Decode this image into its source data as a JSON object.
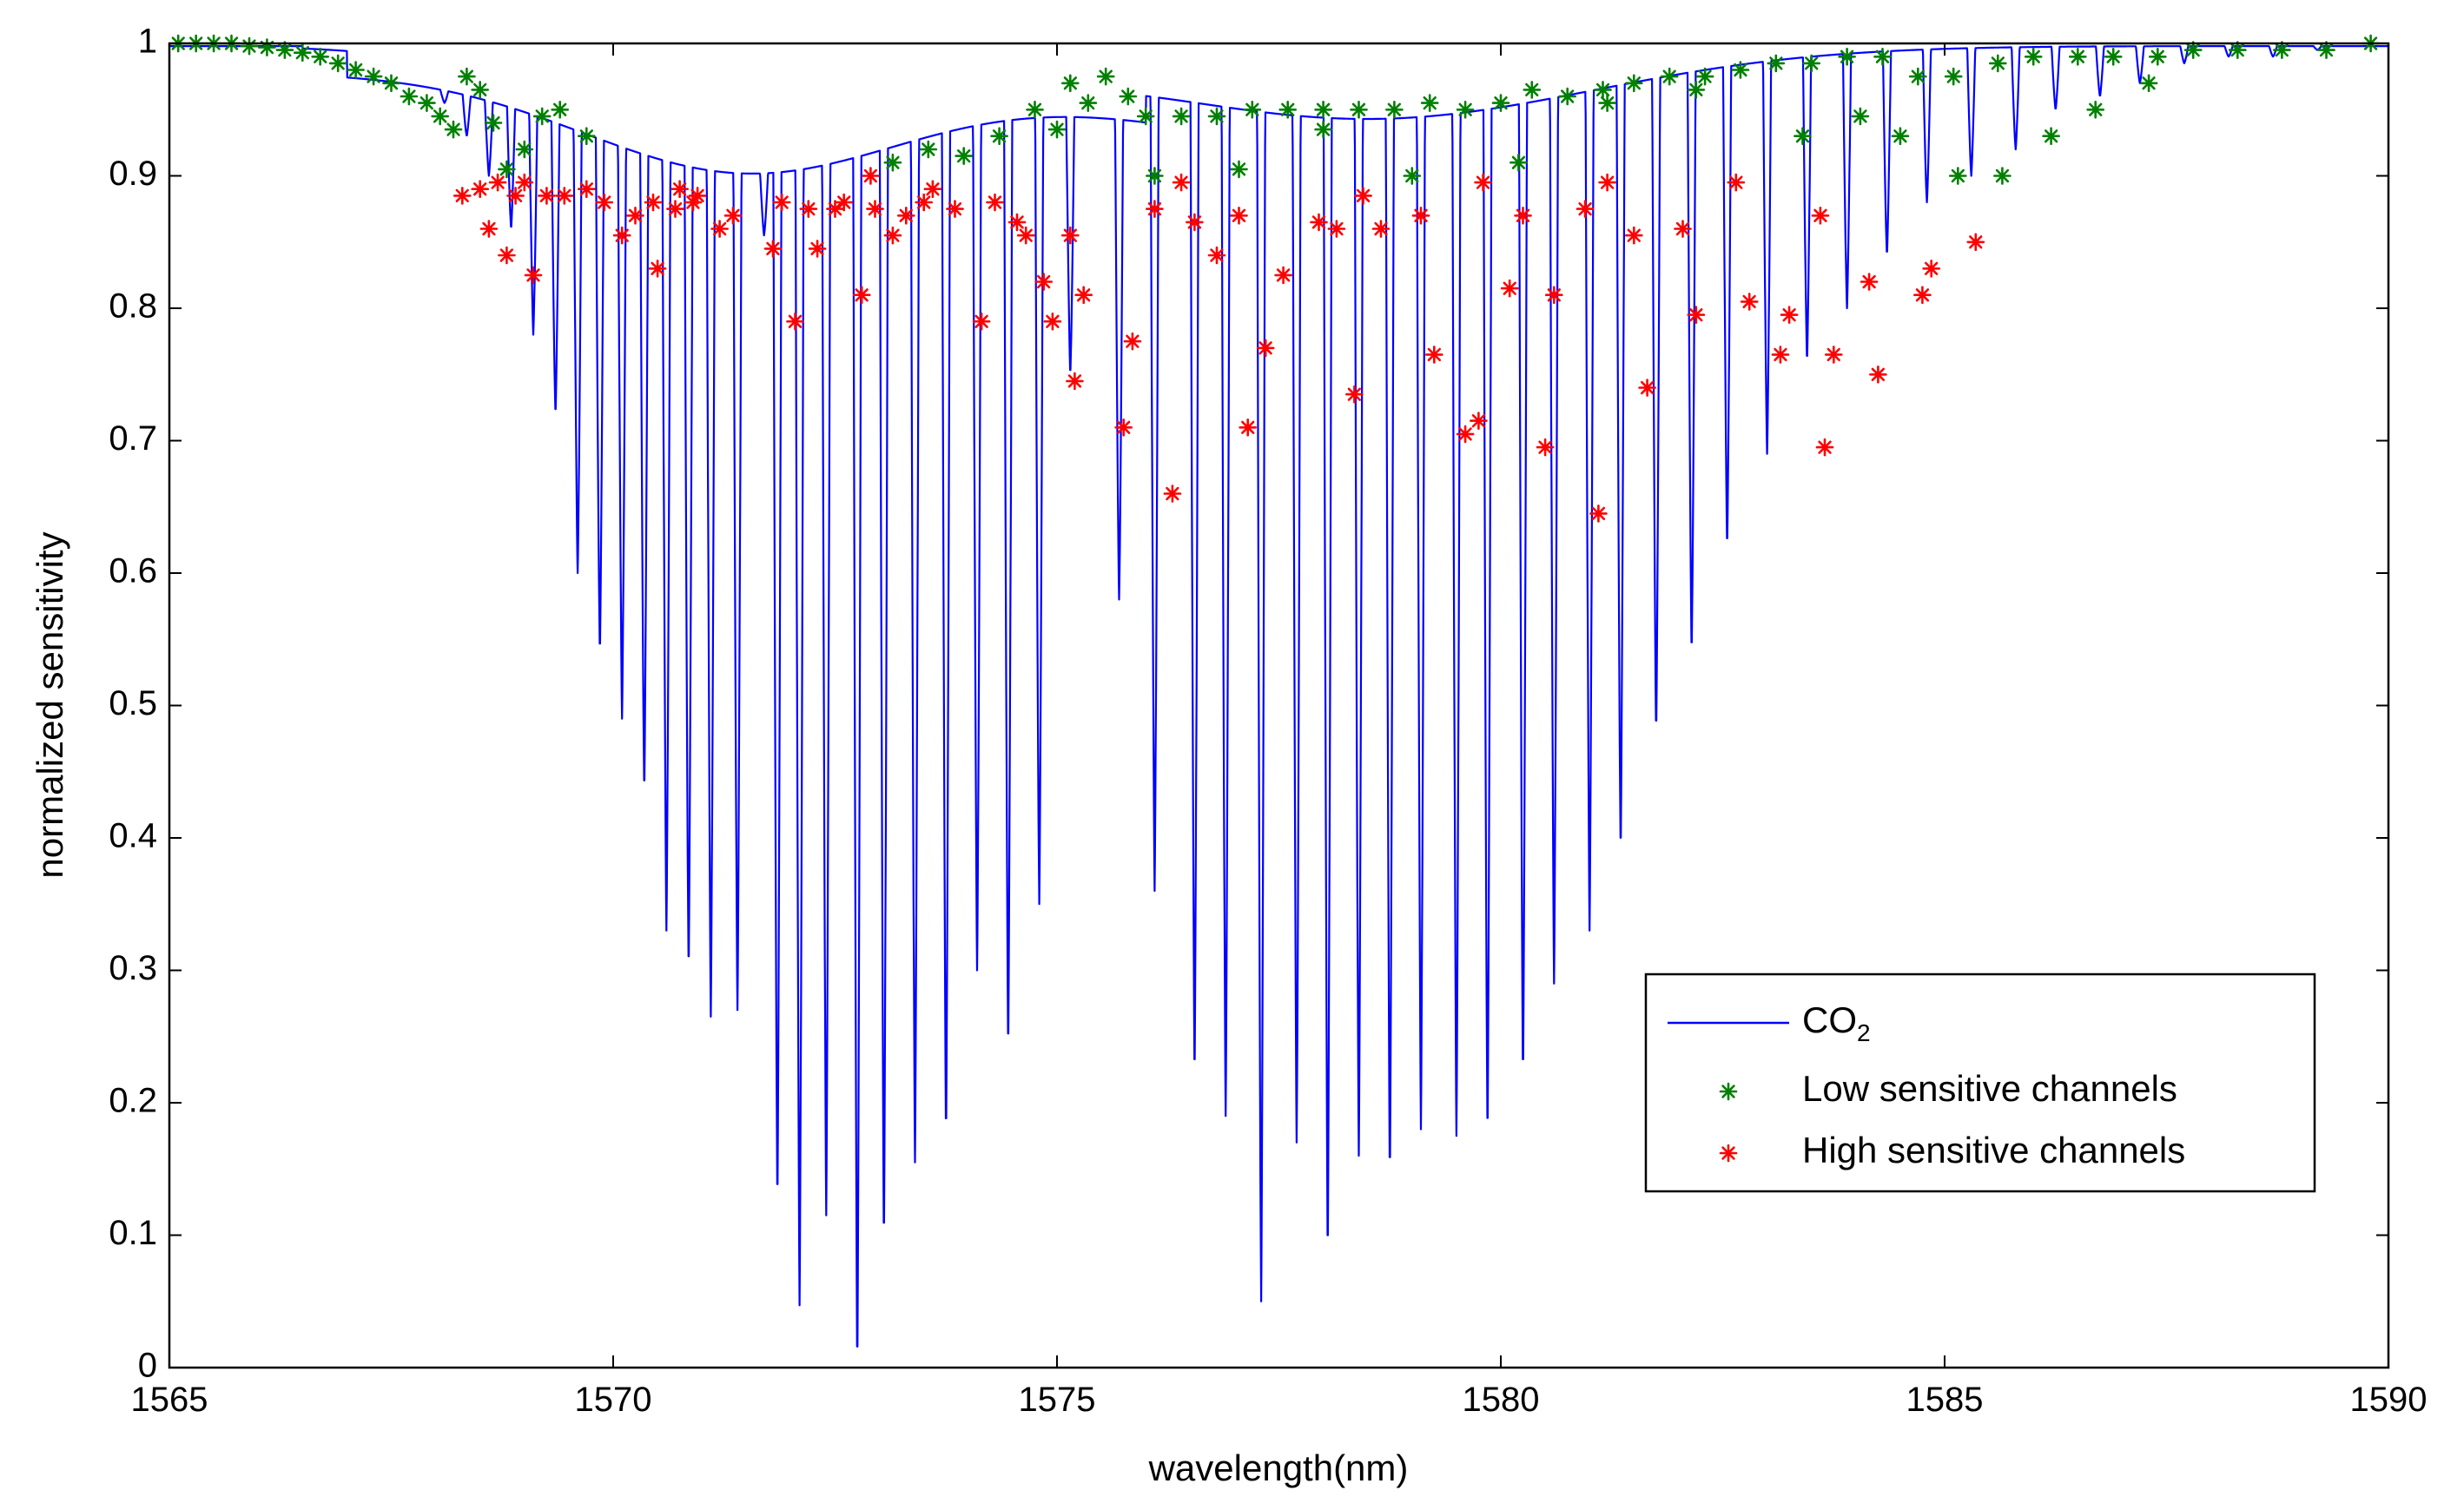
{
  "chart_data": {
    "type": "line",
    "title": "",
    "xlabel": "wavelength(nm)",
    "ylabel": "normalized sensitivity",
    "xlim": [
      1565,
      1590
    ],
    "ylim": [
      0,
      1
    ],
    "x_ticks": [
      "1565",
      "1570",
      "1575",
      "1580",
      "1585",
      "1590"
    ],
    "y_ticks": [
      "0",
      "0.1",
      "0.2",
      "0.3",
      "0.4",
      "0.5",
      "0.6",
      "0.7",
      "0.8",
      "0.9",
      "1"
    ],
    "grid": false,
    "legend_position": "bottom-right",
    "colors": {
      "line": "#0000ff",
      "low": "#008000",
      "high": "#ff0000",
      "axes": "#000000"
    },
    "series": [
      {
        "name": "CO2",
        "legend_main": "CO",
        "legend_sub": "2",
        "kind": "line",
        "dips": [
          [
            1567.8,
            0.975
          ],
          [
            1568.1,
            0.955
          ],
          [
            1568.35,
            0.93
          ],
          [
            1568.6,
            0.9
          ],
          [
            1568.85,
            0.86
          ],
          [
            1569.1,
            0.78
          ],
          [
            1569.35,
            0.72
          ],
          [
            1569.6,
            0.6
          ],
          [
            1569.85,
            0.54
          ],
          [
            1570.1,
            0.49
          ],
          [
            1570.35,
            0.435
          ],
          [
            1570.6,
            0.33
          ],
          [
            1570.85,
            0.3
          ],
          [
            1571.1,
            0.265
          ],
          [
            1571.4,
            0.27
          ],
          [
            1571.7,
            0.855
          ],
          [
            1571.85,
            0.125
          ],
          [
            1572.1,
            0.047
          ],
          [
            1572.4,
            0.115
          ],
          [
            1572.75,
            0.0
          ],
          [
            1573.05,
            0.095
          ],
          [
            1573.4,
            0.155
          ],
          [
            1573.75,
            0.175
          ],
          [
            1574.1,
            0.3
          ],
          [
            1574.45,
            0.24
          ],
          [
            1574.8,
            0.35
          ],
          [
            1575.15,
            0.75
          ],
          [
            1575.5,
            0.95
          ],
          [
            1575.7,
            0.58
          ],
          [
            1576.1,
            0.36
          ],
          [
            1576.55,
            0.22
          ],
          [
            1576.9,
            0.19
          ],
          [
            1577.3,
            0.05
          ],
          [
            1577.7,
            0.17
          ],
          [
            1578.05,
            0.085
          ],
          [
            1578.4,
            0.16
          ],
          [
            1578.75,
            0.145
          ],
          [
            1579.1,
            0.18
          ],
          [
            1579.5,
            0.175
          ],
          [
            1579.85,
            0.175
          ],
          [
            1580.25,
            0.22
          ],
          [
            1580.6,
            0.29
          ],
          [
            1581.0,
            0.33
          ],
          [
            1581.35,
            0.39
          ],
          [
            1581.75,
            0.48
          ],
          [
            1582.15,
            0.54
          ],
          [
            1582.55,
            0.62
          ],
          [
            1583.0,
            0.69
          ],
          [
            1583.45,
            0.76
          ],
          [
            1583.9,
            0.8
          ],
          [
            1584.35,
            0.84
          ],
          [
            1584.8,
            0.88
          ],
          [
            1585.3,
            0.9
          ],
          [
            1585.8,
            0.92
          ],
          [
            1586.25,
            0.95
          ],
          [
            1586.75,
            0.96
          ],
          [
            1587.2,
            0.97
          ],
          [
            1587.7,
            0.985
          ],
          [
            1588.2,
            0.99
          ],
          [
            1588.7,
            0.99
          ],
          [
            1589.2,
            0.995
          ]
        ]
      },
      {
        "name": "Low sensitive channels",
        "kind": "scatter",
        "points": [
          [
            1565.1,
            1.0
          ],
          [
            1565.3,
            1.0
          ],
          [
            1565.5,
            1.0
          ],
          [
            1565.7,
            1.0
          ],
          [
            1565.9,
            0.998
          ],
          [
            1566.1,
            0.997
          ],
          [
            1566.3,
            0.995
          ],
          [
            1566.5,
            0.993
          ],
          [
            1566.7,
            0.99
          ],
          [
            1566.9,
            0.985
          ],
          [
            1567.1,
            0.98
          ],
          [
            1567.3,
            0.975
          ],
          [
            1567.5,
            0.97
          ],
          [
            1567.7,
            0.96
          ],
          [
            1567.9,
            0.955
          ],
          [
            1568.05,
            0.945
          ],
          [
            1568.2,
            0.935
          ],
          [
            1568.35,
            0.975
          ],
          [
            1568.5,
            0.965
          ],
          [
            1568.65,
            0.94
          ],
          [
            1568.8,
            0.905
          ],
          [
            1569.0,
            0.92
          ],
          [
            1569.2,
            0.945
          ],
          [
            1569.4,
            0.95
          ],
          [
            1569.7,
            0.93
          ],
          [
            1573.15,
            0.91
          ],
          [
            1573.55,
            0.92
          ],
          [
            1573.95,
            0.915
          ],
          [
            1574.35,
            0.93
          ],
          [
            1574.75,
            0.95
          ],
          [
            1575.0,
            0.935
          ],
          [
            1575.15,
            0.97
          ],
          [
            1575.35,
            0.955
          ],
          [
            1575.55,
            0.975
          ],
          [
            1575.8,
            0.96
          ],
          [
            1576.0,
            0.945
          ],
          [
            1576.4,
            0.945
          ],
          [
            1576.8,
            0.945
          ],
          [
            1577.2,
            0.95
          ],
          [
            1577.6,
            0.95
          ],
          [
            1578.0,
            0.95
          ],
          [
            1578.4,
            0.95
          ],
          [
            1578.8,
            0.95
          ],
          [
            1579.2,
            0.955
          ],
          [
            1579.6,
            0.95
          ],
          [
            1580.0,
            0.955
          ],
          [
            1580.35,
            0.965
          ],
          [
            1580.75,
            0.96
          ],
          [
            1581.15,
            0.965
          ],
          [
            1581.5,
            0.97
          ],
          [
            1581.9,
            0.975
          ],
          [
            1582.3,
            0.975
          ],
          [
            1582.7,
            0.98
          ],
          [
            1583.1,
            0.985
          ],
          [
            1583.5,
            0.985
          ],
          [
            1583.9,
            0.99
          ],
          [
            1584.3,
            0.99
          ],
          [
            1584.7,
            0.975
          ],
          [
            1585.1,
            0.975
          ],
          [
            1585.6,
            0.985
          ],
          [
            1586.0,
            0.99
          ],
          [
            1586.5,
            0.99
          ],
          [
            1586.9,
            0.99
          ],
          [
            1587.4,
            0.99
          ],
          [
            1587.8,
            0.995
          ],
          [
            1588.3,
            0.995
          ],
          [
            1588.8,
            0.995
          ],
          [
            1589.3,
            0.995
          ],
          [
            1589.8,
            1.0
          ],
          [
            1576.1,
            0.9
          ],
          [
            1577.05,
            0.905
          ],
          [
            1578.0,
            0.935
          ],
          [
            1579.0,
            0.9
          ],
          [
            1580.2,
            0.91
          ],
          [
            1581.2,
            0.955
          ],
          [
            1582.2,
            0.965
          ],
          [
            1583.4,
            0.93
          ],
          [
            1584.05,
            0.945
          ],
          [
            1584.5,
            0.93
          ],
          [
            1585.15,
            0.9
          ],
          [
            1585.65,
            0.9
          ],
          [
            1586.2,
            0.93
          ],
          [
            1586.7,
            0.95
          ],
          [
            1587.3,
            0.97
          ]
        ]
      },
      {
        "name": "High sensitive channels",
        "kind": "scatter",
        "points": [
          [
            1568.3,
            0.885
          ],
          [
            1568.5,
            0.89
          ],
          [
            1568.6,
            0.86
          ],
          [
            1568.7,
            0.895
          ],
          [
            1568.8,
            0.84
          ],
          [
            1568.9,
            0.885
          ],
          [
            1569.0,
            0.895
          ],
          [
            1569.1,
            0.825
          ],
          [
            1569.25,
            0.885
          ],
          [
            1569.45,
            0.885
          ],
          [
            1569.7,
            0.89
          ],
          [
            1569.9,
            0.88
          ],
          [
            1570.1,
            0.855
          ],
          [
            1570.25,
            0.87
          ],
          [
            1570.45,
            0.88
          ],
          [
            1570.5,
            0.83
          ],
          [
            1570.7,
            0.875
          ],
          [
            1570.75,
            0.89
          ],
          [
            1570.9,
            0.88
          ],
          [
            1570.95,
            0.885
          ],
          [
            1571.2,
            0.86
          ],
          [
            1571.35,
            0.87
          ],
          [
            1571.8,
            0.845
          ],
          [
            1571.9,
            0.88
          ],
          [
            1572.05,
            0.79
          ],
          [
            1572.2,
            0.875
          ],
          [
            1572.3,
            0.845
          ],
          [
            1572.5,
            0.875
          ],
          [
            1572.6,
            0.88
          ],
          [
            1572.8,
            0.81
          ],
          [
            1572.9,
            0.9
          ],
          [
            1572.95,
            0.875
          ],
          [
            1573.15,
            0.855
          ],
          [
            1573.3,
            0.87
          ],
          [
            1573.5,
            0.88
          ],
          [
            1573.6,
            0.89
          ],
          [
            1573.85,
            0.875
          ],
          [
            1574.15,
            0.79
          ],
          [
            1574.3,
            0.88
          ],
          [
            1574.55,
            0.865
          ],
          [
            1574.65,
            0.855
          ],
          [
            1574.85,
            0.82
          ],
          [
            1574.95,
            0.79
          ],
          [
            1575.15,
            0.855
          ],
          [
            1575.2,
            0.745
          ],
          [
            1575.3,
            0.81
          ],
          [
            1575.75,
            0.71
          ],
          [
            1575.85,
            0.775
          ],
          [
            1576.1,
            0.875
          ],
          [
            1576.3,
            0.66
          ],
          [
            1576.4,
            0.895
          ],
          [
            1576.55,
            0.865
          ],
          [
            1576.8,
            0.84
          ],
          [
            1577.05,
            0.87
          ],
          [
            1577.15,
            0.71
          ],
          [
            1577.35,
            0.77
          ],
          [
            1577.55,
            0.825
          ],
          [
            1577.95,
            0.865
          ],
          [
            1578.15,
            0.86
          ],
          [
            1578.35,
            0.735
          ],
          [
            1578.45,
            0.885
          ],
          [
            1578.65,
            0.86
          ],
          [
            1579.1,
            0.87
          ],
          [
            1579.25,
            0.765
          ],
          [
            1579.6,
            0.705
          ],
          [
            1579.75,
            0.715
          ],
          [
            1579.8,
            0.895
          ],
          [
            1580.1,
            0.815
          ],
          [
            1580.25,
            0.87
          ],
          [
            1580.5,
            0.695
          ],
          [
            1580.6,
            0.81
          ],
          [
            1580.95,
            0.875
          ],
          [
            1581.1,
            0.645
          ],
          [
            1581.2,
            0.895
          ],
          [
            1581.5,
            0.855
          ],
          [
            1581.65,
            0.74
          ],
          [
            1582.05,
            0.86
          ],
          [
            1582.2,
            0.795
          ],
          [
            1582.65,
            0.895
          ],
          [
            1582.8,
            0.805
          ],
          [
            1583.15,
            0.765
          ],
          [
            1583.25,
            0.795
          ],
          [
            1583.6,
            0.87
          ],
          [
            1583.65,
            0.695
          ],
          [
            1583.75,
            0.765
          ],
          [
            1584.15,
            0.82
          ],
          [
            1584.25,
            0.75
          ],
          [
            1584.75,
            0.81
          ],
          [
            1584.85,
            0.83
          ],
          [
            1585.35,
            0.85
          ]
        ]
      }
    ]
  }
}
